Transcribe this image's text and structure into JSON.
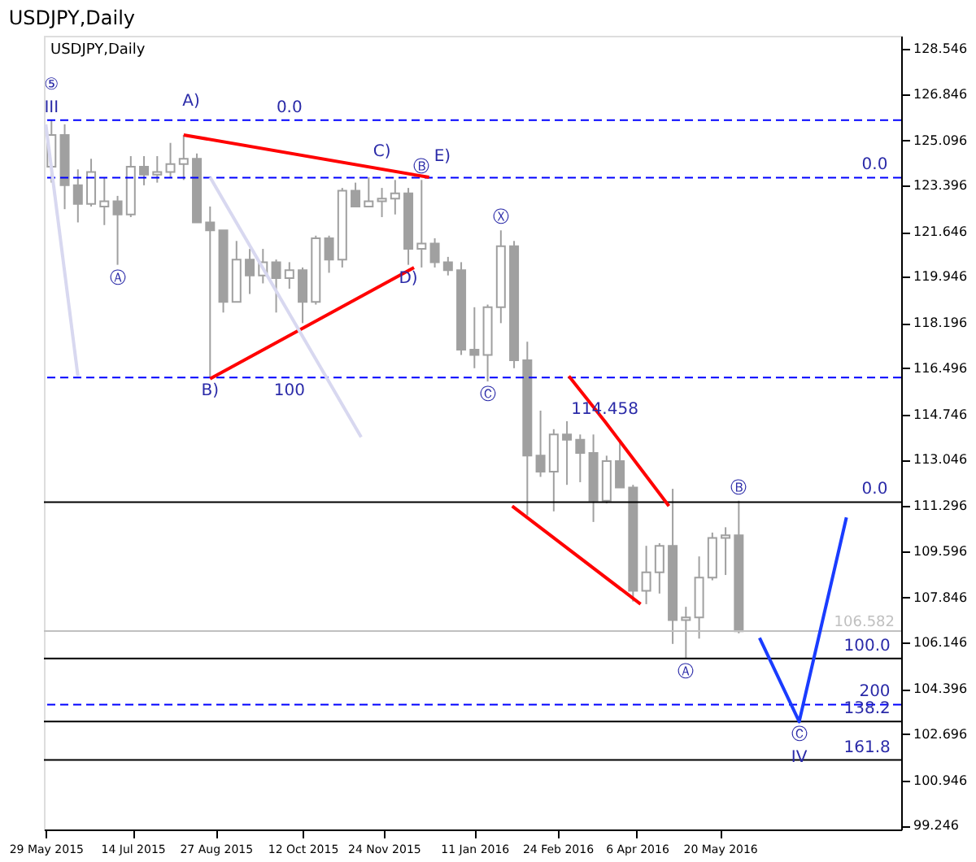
{
  "chart_data": {
    "type": "candlestick",
    "title": "USDJPY,Daily",
    "x": [
      "2015-06-01",
      "2015-06-08",
      "2015-06-15",
      "2015-06-22",
      "2015-06-29",
      "2015-07-06",
      "2015-07-13",
      "2015-07-20",
      "2015-07-27",
      "2015-08-03",
      "2015-08-10",
      "2015-08-17",
      "2015-08-24",
      "2015-08-31",
      "2015-09-07",
      "2015-09-14",
      "2015-09-21",
      "2015-09-28",
      "2015-10-05",
      "2015-10-12",
      "2015-10-19",
      "2015-10-26",
      "2015-11-02",
      "2015-11-09",
      "2015-11-16",
      "2015-11-23",
      "2015-11-30",
      "2015-12-07",
      "2015-12-14",
      "2015-12-21",
      "2015-12-28",
      "2016-01-04",
      "2016-01-11",
      "2016-01-18",
      "2016-01-25",
      "2016-02-01",
      "2016-02-08",
      "2016-02-15",
      "2016-02-22",
      "2016-02-29",
      "2016-03-07",
      "2016-03-14",
      "2016-03-21",
      "2016-03-28",
      "2016-04-04",
      "2016-04-11",
      "2016-04-18",
      "2016-04-25",
      "2016-05-02",
      "2016-05-09",
      "2016-05-16",
      "2016-05-23",
      "2016-05-30"
    ],
    "ohlc": [
      [
        124.1,
        125.86,
        123.5,
        125.3
      ],
      [
        125.3,
        125.7,
        122.5,
        123.4
      ],
      [
        123.4,
        124.0,
        122.0,
        122.7
      ],
      [
        122.7,
        124.4,
        122.6,
        123.9
      ],
      [
        122.6,
        123.7,
        121.9,
        122.8
      ],
      [
        122.8,
        123.0,
        120.4,
        122.3
      ],
      [
        122.3,
        124.5,
        122.2,
        124.1
      ],
      [
        124.1,
        124.5,
        123.4,
        123.8
      ],
      [
        123.8,
        124.5,
        123.5,
        123.9
      ],
      [
        123.9,
        125.0,
        123.7,
        124.2
      ],
      [
        124.2,
        125.3,
        123.6,
        124.4
      ],
      [
        124.4,
        124.6,
        122.0,
        122.0
      ],
      [
        122.0,
        122.6,
        116.15,
        121.7
      ],
      [
        121.7,
        121.7,
        118.6,
        119.0
      ],
      [
        119.0,
        121.3,
        119.0,
        120.6
      ],
      [
        120.6,
        121.0,
        119.3,
        120.0
      ],
      [
        120.0,
        121.0,
        119.7,
        120.5
      ],
      [
        120.5,
        120.6,
        118.6,
        119.9
      ],
      [
        119.9,
        120.5,
        119.5,
        120.2
      ],
      [
        120.2,
        120.3,
        118.2,
        119.0
      ],
      [
        119.0,
        121.5,
        118.9,
        121.4
      ],
      [
        121.4,
        121.5,
        120.1,
        120.6
      ],
      [
        120.6,
        123.3,
        120.3,
        123.2
      ],
      [
        123.2,
        123.5,
        122.6,
        122.6
      ],
      [
        122.6,
        123.7,
        122.6,
        122.8
      ],
      [
        122.8,
        123.3,
        122.2,
        122.9
      ],
      [
        122.9,
        123.6,
        122.3,
        123.1
      ],
      [
        123.1,
        123.3,
        120.4,
        121.0
      ],
      [
        121.0,
        123.6,
        120.3,
        121.2
      ],
      [
        121.2,
        121.4,
        120.3,
        120.5
      ],
      [
        120.5,
        120.7,
        120.0,
        120.2
      ],
      [
        120.2,
        120.5,
        117.0,
        117.2
      ],
      [
        117.2,
        118.8,
        116.5,
        117.0
      ],
      [
        117.0,
        118.9,
        116.0,
        118.8
      ],
      [
        118.8,
        121.7,
        118.2,
        121.1
      ],
      [
        121.1,
        121.3,
        116.5,
        116.8
      ],
      [
        116.8,
        117.5,
        110.95,
        113.2
      ],
      [
        113.2,
        114.9,
        112.4,
        112.6
      ],
      [
        112.6,
        114.2,
        111.1,
        114.0
      ],
      [
        114.0,
        114.5,
        112.1,
        113.8
      ],
      [
        113.8,
        114.0,
        112.2,
        113.3
      ],
      [
        113.3,
        114.0,
        110.7,
        111.5
      ],
      [
        111.5,
        113.2,
        111.4,
        113.0
      ],
      [
        113.0,
        113.8,
        112.0,
        112.0
      ],
      [
        112.0,
        112.1,
        107.7,
        108.1
      ],
      [
        108.1,
        109.8,
        107.6,
        108.8
      ],
      [
        108.8,
        109.9,
        108.0,
        109.8
      ],
      [
        109.8,
        111.95,
        106.1,
        107.0
      ],
      [
        107.0,
        107.5,
        105.55,
        107.1
      ],
      [
        107.1,
        109.4,
        106.3,
        108.6
      ],
      [
        108.6,
        110.3,
        108.5,
        110.1
      ],
      [
        110.1,
        110.5,
        108.7,
        110.2
      ],
      [
        110.2,
        111.5,
        106.5,
        106.58
      ]
    ],
    "color": "#a0a0a0",
    "series": [
      {
        "type": "line",
        "color": "#ff0000",
        "x": [
          "2015-08-10",
          "2015-12-18"
        ],
        "values": [
          125.3,
          123.7
        ]
      },
      {
        "type": "line",
        "color": "#ff0000",
        "x": [
          "2015-08-24",
          "2015-12-10"
        ],
        "values": [
          116.1,
          120.3
        ]
      },
      {
        "type": "line",
        "color": "#ff0000",
        "x": [
          "2016-03-01",
          "2016-03-20",
          "2016-04-23"
        ],
        "values": [
          116.2,
          114.5,
          111.3
        ]
      },
      {
        "type": "line",
        "color": "#ff0000",
        "x": [
          "2016-01-31",
          "2016-04-08"
        ],
        "values": [
          111.3,
          107.6
        ]
      },
      {
        "type": "line",
        "color": "#d8d8f0",
        "x": [
          "2015-05-29",
          "2015-06-15"
        ],
        "values": [
          125.7,
          116.2
        ]
      },
      {
        "type": "line",
        "color": "#d8d8f0",
        "x": [
          "2015-08-24",
          "2015-11-12"
        ],
        "values": [
          123.7,
          113.9
        ]
      },
      {
        "type": "line",
        "color": "#1a3cff",
        "x": [
          "2016-06-10",
          "2016-07-01",
          "2016-07-26"
        ],
        "values": [
          106.33,
          103.17,
          110.87
        ]
      }
    ],
    "ref_lines": [
      {
        "axis": "y",
        "value": 125.86,
        "color": "#0000ff",
        "line_style": "dashed"
      },
      {
        "axis": "y",
        "value": 116.15,
        "color": "#0000ff",
        "line_style": "dashed"
      },
      {
        "axis": "y",
        "value": 123.69,
        "color": "#0000ff",
        "line_style": "dashed"
      },
      {
        "axis": "y",
        "value": 103.81,
        "color": "#0000ff",
        "line_style": "dashed"
      },
      {
        "axis": "y",
        "value": 111.45,
        "color": "#000000",
        "line_style": "solid"
      },
      {
        "axis": "y",
        "value": 105.55,
        "color": "#000000",
        "line_style": "solid"
      },
      {
        "axis": "y",
        "value": 103.17,
        "color": "#000000",
        "line_style": "solid"
      },
      {
        "axis": "y",
        "value": 101.72,
        "color": "#000000",
        "line_style": "solid"
      },
      {
        "axis": "y",
        "value": 106.582,
        "label": "106.582",
        "color": "#c0c0c0",
        "line_style": "solid"
      }
    ],
    "annotations": [
      "USDJPY,Daily",
      {
        "text": "III",
        "x": "2015-06-01",
        "y": 125.86
      },
      {
        "text": "⑤",
        "x": "2015-06-01",
        "y": 125.86
      },
      {
        "text": "A)",
        "x": "2015-08-14",
        "y": 126.1
      },
      {
        "text": "Ⓐ",
        "x": "2015-07-06",
        "y": 120.4
      },
      {
        "text": "B)",
        "x": "2015-08-24",
        "y": 116.15
      },
      {
        "text": "C)",
        "x": "2015-11-23",
        "y": 124.2
      },
      {
        "text": "Ⓑ",
        "x": "2015-12-14",
        "y": 123.6
      },
      {
        "text": "E)",
        "x": "2015-12-25",
        "y": 124.0
      },
      {
        "text": "D)",
        "x": "2015-12-07",
        "y": 120.4
      },
      {
        "text": "Ⓧ",
        "x": "2016-01-25",
        "y": 121.7
      },
      {
        "text": "Ⓒ",
        "x": "2016-01-18",
        "y": 116.0
      },
      {
        "text": "114.458",
        "x": "2016-03-20",
        "y": 114.458
      },
      {
        "text": "0.0",
        "x": "2015-10-05",
        "y": 125.86
      },
      {
        "text": "100",
        "x": "2015-10-05",
        "y": 116.15
      },
      {
        "text": "0.0",
        "x": "2016-08-10",
        "y": 123.69
      },
      {
        "text": "200",
        "x": "2016-08-10",
        "y": 103.81
      },
      {
        "text": "0.0",
        "x": "2016-08-10",
        "y": 111.45
      },
      {
        "text": "100.0",
        "x": "2016-08-06",
        "y": 105.55
      },
      {
        "text": "138.2",
        "x": "2016-08-06",
        "y": 103.17
      },
      {
        "text": "161.8",
        "x": "2016-08-06",
        "y": 101.72
      },
      {
        "text": "Ⓑ",
        "x": "2016-05-30",
        "y": 111.5
      },
      {
        "text": "Ⓐ",
        "x": "2016-05-02",
        "y": 105.55
      },
      {
        "text": "Ⓒ",
        "x": "2016-07-01",
        "y": 103.17
      },
      {
        "text": "IV",
        "x": "2016-07-01",
        "y": 103.17
      }
    ],
    "xlim": [
      "2015-05-28",
      "2016-08-24"
    ],
    "xticks": [
      {
        "value": "2015-05-29",
        "label": "29 May 2015"
      },
      {
        "value": "2015-07-14",
        "label": "14 Jul 2015"
      },
      {
        "value": "2015-08-27",
        "label": "27 Aug 2015"
      },
      {
        "value": "2015-10-12",
        "label": "12 Oct 2015"
      },
      {
        "value": "2015-11-24",
        "label": "24 Nov 2015"
      },
      {
        "value": "2016-01-11",
        "label": "11 Jan 2016"
      },
      {
        "value": "2016-02-24",
        "label": "24 Feb 2016"
      },
      {
        "value": "2016-04-06",
        "label": "6 Apr 2016"
      },
      {
        "value": "2016-05-20",
        "label": "20 May 2016"
      }
    ],
    "ylim": [
      99.1,
      129.04
    ],
    "yticks": [
      128.546,
      126.846,
      125.096,
      123.396,
      121.646,
      119.946,
      118.196,
      116.496,
      114.746,
      113.046,
      111.296,
      109.596,
      107.846,
      106.146,
      104.396,
      102.696,
      100.946,
      99.246
    ],
    "grid": false
  }
}
